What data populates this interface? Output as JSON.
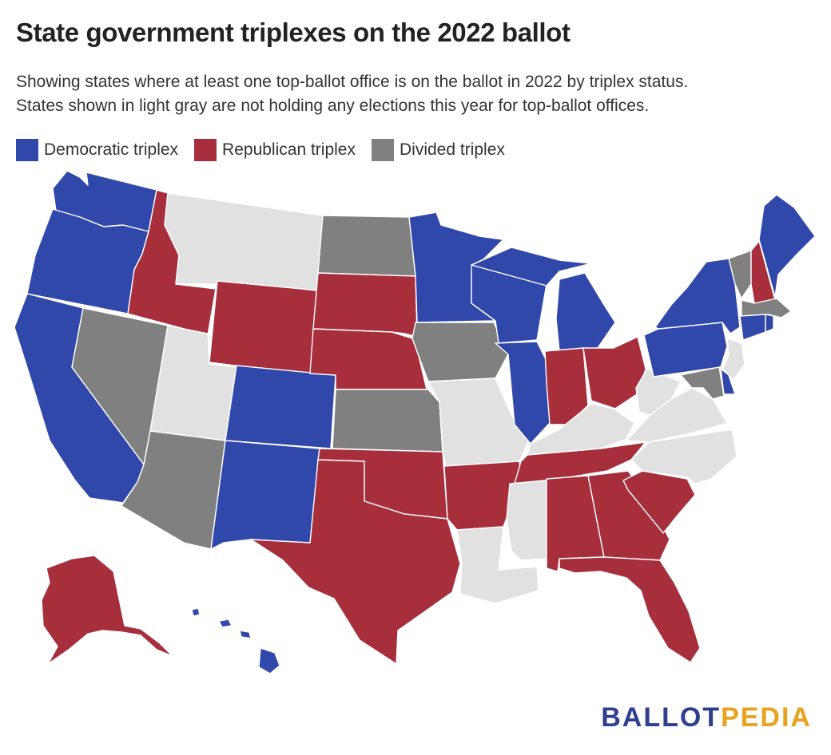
{
  "title": "State government triplexes on the 2022 ballot",
  "subtitle_lines": [
    "Showing states where at least one top-ballot office is on the ballot in 2022 by triplex status.",
    "States shown in light gray are not holding any elections this year for top-ballot offices."
  ],
  "colors": {
    "democratic": "#3148ab",
    "republican": "#a72e3b",
    "divided": "#808080",
    "none": "#e1e1e1"
  },
  "legend": [
    {
      "key": "democratic",
      "label": "Democratic triplex"
    },
    {
      "key": "republican",
      "label": "Republican triplex"
    },
    {
      "key": "divided",
      "label": "Divided triplex"
    }
  ],
  "states": {
    "WA": "democratic",
    "OR": "democratic",
    "CA": "democratic",
    "ID": "republican",
    "NV": "divided",
    "MT": "none",
    "WY": "republican",
    "UT": "none",
    "AZ": "divided",
    "CO": "democratic",
    "NM": "democratic",
    "ND": "divided",
    "SD": "republican",
    "NE": "republican",
    "KS": "divided",
    "OK": "republican",
    "TX": "republican",
    "MN": "democratic",
    "IA": "divided",
    "MO": "none",
    "AR": "republican",
    "LA": "none",
    "WI": "democratic",
    "IL": "democratic",
    "MI": "democratic",
    "IN": "republican",
    "OH": "republican",
    "KY": "none",
    "TN": "republican",
    "MS": "none",
    "AL": "republican",
    "GA": "republican",
    "FL": "republican",
    "SC": "republican",
    "NC": "none",
    "VA": "none",
    "WV": "none",
    "PA": "democratic",
    "NY": "democratic",
    "VT": "divided",
    "NH": "republican",
    "ME": "democratic",
    "MA": "divided",
    "CT": "democratic",
    "RI": "democratic",
    "NJ": "none",
    "DE": "democratic",
    "MD": "divided",
    "AK": "republican",
    "HI": "democratic"
  },
  "logo": {
    "part1": "BALLOT",
    "part2": "PEDIA"
  }
}
